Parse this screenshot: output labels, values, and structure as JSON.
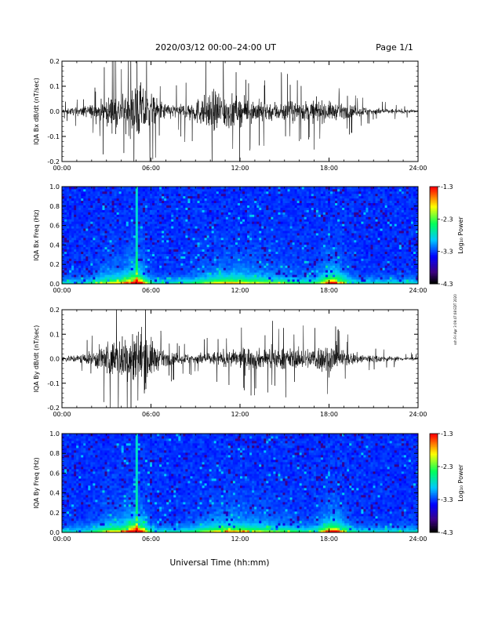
{
  "header": {
    "title": "2020/03/12  00:00–24:00 UT",
    "page": "Page 1/1"
  },
  "footer": {
    "xlabel": "Universal Time (hh:mm)"
  },
  "stamp": "ssh Fri Apr 3 09:47:08 EDT 2020",
  "colors": {
    "trace": "#000000",
    "colormap": [
      "#000000",
      "#3a0080",
      "#0000ff",
      "#00d0ff",
      "#00ff60",
      "#ffff00",
      "#ff0000"
    ]
  },
  "chart_data": [
    {
      "type": "line",
      "ylabel": "IQA Bx dB/dt (nT/sec)",
      "xlim": [
        0,
        24
      ],
      "ylim": [
        -0.2,
        0.2
      ],
      "x_tick_labels": [
        "00:00",
        "06:00",
        "12:00",
        "18:00",
        "24:00"
      ],
      "y_tick_labels": [
        "-0.2",
        "-0.1",
        "0.0",
        "0.1",
        "0.2"
      ],
      "y_tick_values": [
        -0.2,
        -0.1,
        0.0,
        0.1,
        0.2
      ],
      "envelope": {
        "hours": [
          0,
          1,
          2,
          2.5,
          3,
          3.5,
          4,
          4.5,
          5,
          5.5,
          6,
          6.5,
          7,
          8,
          9,
          10,
          10.5,
          11,
          11.5,
          12,
          12.5,
          13,
          13.5,
          14,
          15,
          16,
          17,
          18,
          18.5,
          19,
          20,
          21,
          22,
          23,
          24
        ],
        "amplitude": [
          0.02,
          0.03,
          0.05,
          0.07,
          0.1,
          0.12,
          0.12,
          0.15,
          0.22,
          0.2,
          0.14,
          0.08,
          0.06,
          0.05,
          0.09,
          0.13,
          0.17,
          0.14,
          0.12,
          0.1,
          0.08,
          0.09,
          0.08,
          0.07,
          0.08,
          0.07,
          0.08,
          0.07,
          0.06,
          0.05,
          0.04,
          0.025,
          0.02,
          0.015,
          0.012
        ]
      }
    },
    {
      "type": "heatmap",
      "ylabel": "IQA Bx Freq (Hz)",
      "xlim": [
        0,
        24
      ],
      "ylim": [
        0.0,
        1.0
      ],
      "x_tick_labels": [
        "00:00",
        "06:00",
        "12:00",
        "18:00",
        "24:00"
      ],
      "y_tick_labels": [
        "0.0",
        "0.2",
        "0.4",
        "0.6",
        "0.8",
        "1.0"
      ],
      "y_tick_values": [
        0.0,
        0.2,
        0.4,
        0.6,
        0.8,
        1.0
      ],
      "colorbar": {
        "label": "Log₁₀ Power",
        "range": [
          -4.3,
          -1.3
        ],
        "tick_labels": [
          "-4.3",
          "-3.3",
          "-2.3",
          "-1.3"
        ],
        "tick_values": [
          -4.3,
          -3.3,
          -2.3,
          -1.3
        ]
      }
    },
    {
      "type": "line",
      "ylabel": "IQA By dB/dt (nT/sec)",
      "xlim": [
        0,
        24
      ],
      "ylim": [
        -0.2,
        0.2
      ],
      "x_tick_labels": [
        "00:00",
        "06:00",
        "12:00",
        "18:00",
        "24:00"
      ],
      "y_tick_labels": [
        "-0.2",
        "-0.1",
        "0.0",
        "0.1",
        "0.2"
      ],
      "y_tick_values": [
        -0.2,
        -0.1,
        0.0,
        0.1,
        0.2
      ],
      "envelope": {
        "hours": [
          0,
          1,
          2,
          2.5,
          3,
          3.5,
          4,
          4.5,
          5,
          5.5,
          6,
          6.5,
          7,
          8,
          9,
          10,
          11,
          12,
          12.5,
          13,
          13.5,
          14,
          15,
          16,
          17,
          17.5,
          18,
          18.5,
          19,
          20,
          21,
          22,
          23,
          24
        ],
        "amplitude": [
          0.02,
          0.03,
          0.05,
          0.09,
          0.14,
          0.13,
          0.16,
          0.18,
          0.24,
          0.22,
          0.15,
          0.08,
          0.05,
          0.04,
          0.04,
          0.05,
          0.06,
          0.07,
          0.09,
          0.08,
          0.07,
          0.08,
          0.08,
          0.07,
          0.09,
          0.1,
          0.12,
          0.1,
          0.06,
          0.04,
          0.03,
          0.02,
          0.015,
          0.012
        ]
      }
    },
    {
      "type": "heatmap",
      "ylabel": "IQA By Freq (Hz)",
      "xlim": [
        0,
        24
      ],
      "ylim": [
        0.0,
        1.0
      ],
      "x_tick_labels": [
        "00:00",
        "06:00",
        "12:00",
        "18:00",
        "24:00"
      ],
      "y_tick_labels": [
        "0.0",
        "0.2",
        "0.4",
        "0.6",
        "0.8",
        "1.0"
      ],
      "y_tick_values": [
        0.0,
        0.2,
        0.4,
        0.6,
        0.8,
        1.0
      ],
      "colorbar": {
        "label": "Log₁₀ Power",
        "range": [
          -4.3,
          -1.3
        ],
        "tick_labels": [
          "-4.3",
          "-3.3",
          "-2.3",
          "-1.3"
        ],
        "tick_values": [
          -4.3,
          -3.3,
          -2.3,
          -1.3
        ]
      }
    }
  ]
}
